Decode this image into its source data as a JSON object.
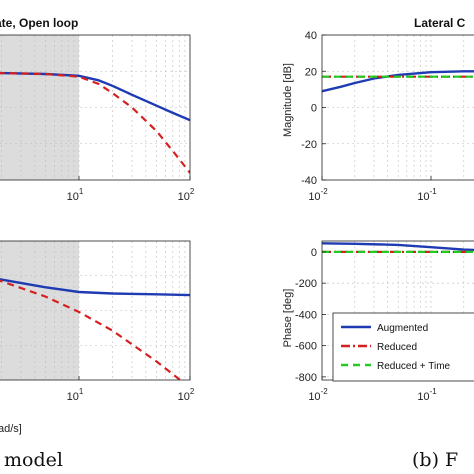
{
  "chart_data": [
    {
      "type": "line",
      "panel": "left-magnitude",
      "title": "ate, Open loop",
      "xscale": "log",
      "xlim": [
        0.01,
        100
      ],
      "xticks": [
        {
          "v": 10,
          "l": "10",
          "e": "1"
        },
        {
          "v": 100,
          "l": "10",
          "e": "2"
        }
      ],
      "yticks": [],
      "ylim": [
        -40,
        40
      ],
      "shaded_region": [
        0.01,
        10
      ],
      "series": [
        {
          "name": "Augmented",
          "color": "#1f3bb3",
          "dash": "solid",
          "x": [
            0.01,
            0.02,
            0.05,
            0.1,
            0.2,
            0.5,
            1,
            2,
            5,
            10,
            15,
            20,
            30,
            50,
            70,
            100
          ],
          "y": [
            19,
            19.5,
            21.5,
            22,
            21,
            20,
            19.5,
            19,
            18.5,
            17.5,
            15,
            12,
            7,
            1,
            -3,
            -7
          ]
        },
        {
          "name": "Reduced",
          "color": "#d62020",
          "dash": "dash",
          "x": [
            0.01,
            0.02,
            0.05,
            0.1,
            0.2,
            0.5,
            1,
            2,
            5,
            10,
            15,
            20,
            30,
            50,
            70,
            100
          ],
          "y": [
            19,
            19.5,
            21.5,
            22,
            21,
            20,
            19.5,
            19,
            18.5,
            17,
            13,
            8,
            0,
            -13,
            -24,
            -36
          ]
        }
      ]
    },
    {
      "type": "line",
      "panel": "left-phase",
      "xscale": "log",
      "xlim": [
        0.01,
        100
      ],
      "xlabel": "ad/s]",
      "xticks": [
        {
          "v": 10,
          "l": "10",
          "e": "1"
        },
        {
          "v": 100,
          "l": "10",
          "e": "2"
        }
      ],
      "yticks": [],
      "ylim": [
        -800,
        100
      ],
      "shaded_region": [
        0.01,
        10
      ],
      "series": [
        {
          "name": "Augmented",
          "color": "#1f3bb3",
          "dash": "solid",
          "x": [
            0.01,
            0.1,
            0.5,
            1,
            2,
            5,
            10,
            20,
            50,
            100
          ],
          "y": [
            0,
            0,
            -30,
            -90,
            -150,
            -200,
            -230,
            -240,
            -245,
            -250
          ]
        },
        {
          "name": "Reduced",
          "color": "#d62020",
          "dash": "dash",
          "x": [
            0.01,
            0.1,
            0.3,
            0.5,
            1,
            2,
            5,
            10,
            20,
            50,
            100
          ],
          "y": [
            0,
            0,
            -40,
            -60,
            -100,
            -160,
            -260,
            -360,
            -480,
            -680,
            -850
          ]
        }
      ]
    },
    {
      "type": "line",
      "panel": "right-magnitude",
      "title": "Lateral C",
      "ylabel": "Magnitude [dB]",
      "xscale": "log",
      "xlim": [
        0.01,
        1
      ],
      "xticks": [
        {
          "v": 0.01,
          "l": "10",
          "e": "-2"
        },
        {
          "v": 0.1,
          "l": "10",
          "e": "-1"
        }
      ],
      "yticks": [
        -40,
        -20,
        0,
        20,
        40
      ],
      "ylim": [
        -40,
        40
      ],
      "series": [
        {
          "name": "Augmented",
          "color": "#1f3bb3",
          "dash": "solid",
          "x": [
            0.01,
            0.015,
            0.02,
            0.03,
            0.05,
            0.1,
            0.2,
            0.5,
            1
          ],
          "y": [
            9,
            11.5,
            13.5,
            16,
            18,
            19.5,
            20,
            20,
            20
          ]
        },
        {
          "name": "Reduced",
          "color": "#d62020",
          "dash": "dashdot",
          "x": [
            0.01,
            1
          ],
          "y": [
            17,
            17
          ]
        },
        {
          "name": "Reduced + Time",
          "color": "#22cc22",
          "dash": "dash",
          "x": [
            0.01,
            1
          ],
          "y": [
            17,
            17
          ]
        }
      ]
    },
    {
      "type": "line",
      "panel": "right-phase",
      "ylabel": "Phase [deg]",
      "xscale": "log",
      "xlim": [
        0.01,
        1
      ],
      "xticks": [
        {
          "v": 0.01,
          "l": "10",
          "e": "-2"
        },
        {
          "v": 0.1,
          "l": "10",
          "e": "-1"
        }
      ],
      "yticks": [
        -800,
        -600,
        -400,
        -200,
        0
      ],
      "ylim": [
        -820,
        70
      ],
      "legend": {
        "placement": "bottom-right",
        "entries": [
          "Augmented",
          "Reduced",
          "Reduced + Time"
        ]
      },
      "series": [
        {
          "name": "Augmented",
          "color": "#1f3bb3",
          "dash": "solid",
          "x": [
            0.01,
            0.02,
            0.05,
            0.1,
            0.2,
            0.5,
            1
          ],
          "y": [
            55,
            52,
            45,
            30,
            15,
            5,
            3
          ]
        },
        {
          "name": "Reduced",
          "color": "#d62020",
          "dash": "dashdot",
          "x": [
            0.01,
            1
          ],
          "y": [
            0,
            0
          ]
        },
        {
          "name": "Reduced + Time",
          "color": "#22cc22",
          "dash": "dash",
          "x": [
            0.01,
            1
          ],
          "y": [
            0,
            0
          ]
        }
      ]
    }
  ],
  "captions": {
    "left": "model",
    "right": "(b) F"
  }
}
